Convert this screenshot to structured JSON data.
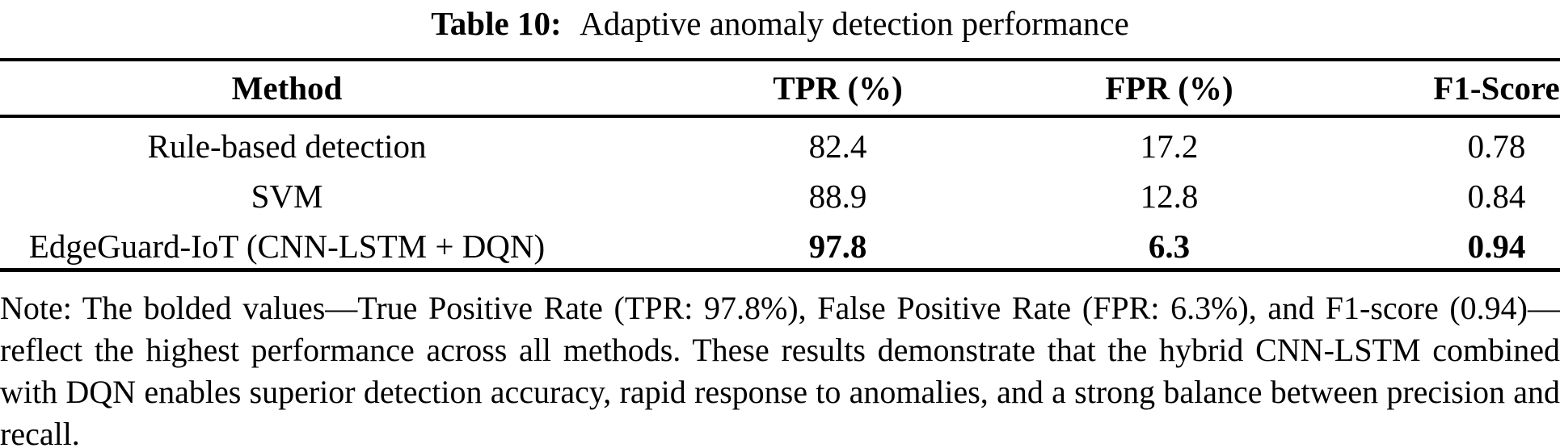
{
  "colors": {
    "text": "#000000",
    "background": "#ffffff",
    "rule": "#000000"
  },
  "caption": {
    "label": "Table 10:",
    "title": "Adaptive anomaly detection performance"
  },
  "chart_data": {
    "type": "table",
    "title": "Adaptive anomaly detection performance",
    "columns": [
      "Method",
      "TPR (%)",
      "FPR (%)",
      "F1-Score"
    ],
    "rows": [
      {
        "method": "Rule-based detection",
        "tpr": "82.4",
        "fpr": "17.2",
        "f1": "0.78"
      },
      {
        "method": "SVM",
        "tpr": "88.9",
        "fpr": "12.8",
        "f1": "0.84"
      },
      {
        "method": "EdgeGuard-IoT (CNN-LSTM + DQN)",
        "tpr": "97.8",
        "fpr": "6.3",
        "f1": "0.94"
      }
    ],
    "bold_row_index": 2,
    "layout": {
      "grid": "horizontal rules only (top, below header, bottom)",
      "alignment": "all columns centered"
    }
  },
  "table": {
    "columns": [
      "Method",
      "TPR (%)",
      "FPR (%)",
      "F1-Score"
    ],
    "rows": [
      {
        "method": "Rule-based detection",
        "tpr": "82.4",
        "fpr": "17.2",
        "f1": "0.78"
      },
      {
        "method": "SVM",
        "tpr": "88.9",
        "fpr": "12.8",
        "f1": "0.84"
      },
      {
        "method": "EdgeGuard-IoT (CNN-LSTM + DQN)",
        "tpr": "97.8",
        "fpr": "6.3",
        "f1": "0.94"
      }
    ]
  },
  "note": "Note: The bolded values—True Positive Rate (TPR: 97.8%), False Positive Rate (FPR: 6.3%), and F1-score (0.94)—reflect the highest performance across all methods. These results demonstrate that the hybrid CNN-LSTM combined with DQN enables superior detection accuracy, rapid response to anomalies, and a strong balance between precision and recall."
}
